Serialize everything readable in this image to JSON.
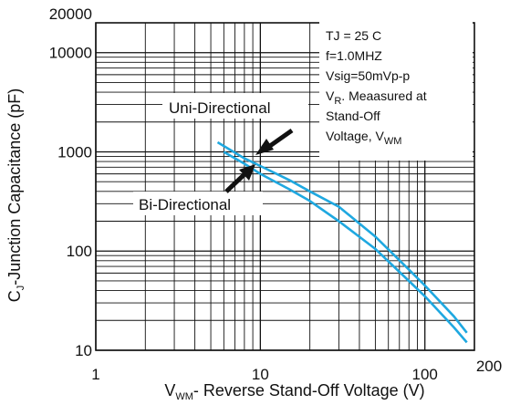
{
  "chart_data": {
    "type": "line",
    "x_scale": "log",
    "y_scale": "log",
    "xlim": [
      1,
      200
    ],
    "ylim": [
      10,
      20000
    ],
    "grid": true,
    "x_ticks": [
      {
        "value": 1,
        "label": "1"
      },
      {
        "value": 10,
        "label": "10"
      },
      {
        "value": 100,
        "label": "100"
      },
      {
        "value": 200,
        "label": "200"
      }
    ],
    "y_ticks": [
      {
        "value": 10,
        "label": "10"
      },
      {
        "value": 100,
        "label": "100"
      },
      {
        "value": 1000,
        "label": "1000"
      },
      {
        "value": 10000,
        "label": "10000"
      },
      {
        "value": 20000,
        "label": "20000"
      }
    ],
    "xlabel": {
      "pre": "V",
      "sub": "WM",
      "post": "- Reverse Stand-Off Voltage (V)"
    },
    "ylabel": {
      "pre": "C",
      "sub": "J",
      "post": "-Junction Capacitance (pF)"
    },
    "conditions": [
      {
        "text": "TJ = 25 C"
      },
      {
        "text": "f=1.0MHZ"
      },
      {
        "text": "Vsig=50mVp-p"
      },
      {
        "pre": "V",
        "sub": "R",
        "post": ". Meaasured at"
      },
      {
        "text": "Stand-Off"
      },
      {
        "pre": "Voltage, V",
        "sub": "WM",
        "post": ""
      }
    ],
    "series": [
      {
        "name": "Uni-Directional",
        "x": [
          5.5,
          8,
          10,
          15,
          20,
          30,
          50,
          80,
          100,
          150,
          180
        ],
        "y": [
          1250,
          860,
          720,
          520,
          400,
          280,
          140,
          65,
          45,
          22,
          15
        ]
      },
      {
        "name": "Bi-Directional",
        "x": [
          6,
          8,
          10,
          15,
          20,
          30,
          50,
          80,
          100,
          150,
          180
        ],
        "y": [
          1000,
          760,
          600,
          420,
          320,
          200,
          105,
          50,
          35,
          17,
          12
        ]
      }
    ],
    "line_color": "#1fa8e0"
  }
}
